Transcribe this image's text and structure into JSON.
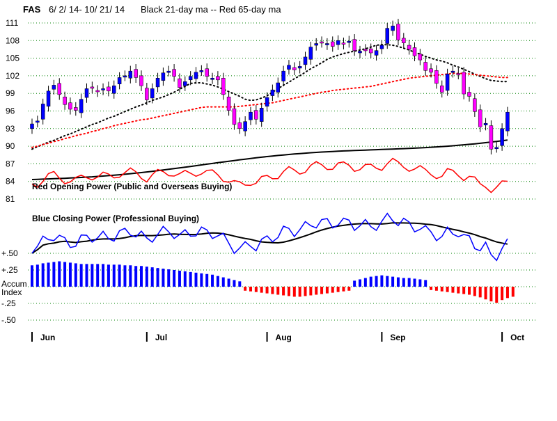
{
  "chart_data": {
    "type": "candlestick",
    "title": {
      "ticker": "FAS",
      "dates": "6/ 2/ 14- 10/ 21/ 14",
      "ma_note": "Black 21-day ma --  Red 65-day ma"
    },
    "y_ticks": [
      "111",
      "108",
      "105",
      "102",
      "99",
      "96",
      "93",
      "90",
      "87",
      "84",
      "81"
    ],
    "y_tick_values": [
      111,
      108,
      105,
      102,
      99,
      96,
      93,
      90,
      87,
      84,
      81
    ],
    "ylim": [
      79.5,
      112.5
    ],
    "accum_ticks": [
      "+.50",
      "+.25",
      "Accum",
      "Index",
      "-.25",
      "-.50"
    ],
    "months": [
      "Jun",
      "Jul",
      "Aug",
      "Sep",
      "Oct"
    ],
    "month_start_index": [
      0,
      21,
      43,
      64,
      86
    ],
    "grid": true,
    "colors": {
      "up": "#0000ff",
      "down": "#ff00ff",
      "ma21": "#000000",
      "ma65": "#ff0000",
      "opening_power": "#ff0000",
      "closing_power": "#0000ff",
      "accum_pos": "#0000ff",
      "accum_neg": "#ff0000",
      "grid": "#008000"
    },
    "series_labels": {
      "opening_power": "Red Opening Power (Public and Overseas Buying)",
      "closing_power": "Blue Closing Power (Professional Buying)"
    },
    "closes": [
      93.8,
      94.3,
      97.2,
      99.4,
      100.4,
      98.8,
      97.1,
      96.3,
      96.1,
      98.0,
      99.8,
      99.9,
      99.3,
      99.8,
      99.4,
      100.3,
      101.7,
      102.0,
      102.8,
      101.7,
      100.3,
      97.9,
      99.8,
      101.6,
      102.5,
      102.8,
      101.9,
      100.0,
      101.0,
      101.9,
      102.6,
      102.9,
      101.9,
      101.6,
      101.3,
      98.8,
      96.1,
      93.7,
      93.0,
      94.2,
      95.8,
      94.6,
      96.5,
      98.3,
      99.6,
      100.8,
      102.8,
      103.8,
      103.0,
      103.6,
      105.2,
      106.9,
      107.5,
      107.7,
      107.5,
      107.0,
      108.0,
      107.4,
      107.9,
      106.3,
      106.2,
      106.3,
      105.9,
      106.3,
      107.2,
      110.1,
      110.5,
      108.1,
      107.6,
      106.5,
      105.4,
      104.7,
      102.9,
      102.6,
      100.7,
      99.2,
      102.3,
      102.8,
      102.3,
      98.9,
      98.5,
      95.9,
      93.3,
      93.9,
      89.5,
      89.8,
      93.0,
      95.8
    ],
    "ma21": [
      89.5,
      89.9,
      90.3,
      90.7,
      91.0,
      91.4,
      91.8,
      92.1,
      92.5,
      92.9,
      93.3,
      93.7,
      94.0,
      94.4,
      94.8,
      95.1,
      95.5,
      95.9,
      96.3,
      96.7,
      97.0,
      97.4,
      97.8,
      98.1,
      98.4,
      98.8,
      99.2,
      99.7,
      100.2,
      100.7,
      100.8,
      100.8,
      100.6,
      100.4,
      100.1,
      99.7,
      99.3,
      98.9,
      98.5,
      98.0,
      97.8,
      97.9,
      98.2,
      98.6,
      99.2,
      99.8,
      100.4,
      100.9,
      101.5,
      102.0,
      102.6,
      103.2,
      103.7,
      104.2,
      104.8,
      105.2,
      105.5,
      105.8,
      106.0,
      106.2,
      106.4,
      106.6,
      106.9,
      107.2,
      107.3,
      107.3,
      107.2,
      107.0,
      106.7,
      106.4,
      106.0,
      105.7,
      105.3,
      105.0,
      104.7,
      104.5,
      104.2,
      103.8,
      103.5,
      103.1,
      102.7,
      102.3,
      101.9,
      101.5,
      101.2,
      101.1,
      101.0,
      101.0
    ],
    "ma65": [
      89.8,
      90.0,
      90.3,
      90.5,
      90.8,
      91.0,
      91.3,
      91.5,
      91.8,
      92.0,
      92.2,
      92.5,
      92.7,
      93.0,
      93.2,
      93.5,
      93.7,
      93.9,
      94.1,
      94.3,
      94.5,
      94.6,
      94.8,
      95.0,
      95.2,
      95.4,
      95.6,
      95.8,
      96.0,
      96.2,
      96.4,
      96.6,
      96.7,
      96.7,
      96.7,
      96.7,
      96.7,
      96.7,
      96.8,
      96.9,
      97.0,
      97.1,
      97.2,
      97.3,
      97.4,
      97.6,
      97.8,
      98.0,
      98.2,
      98.4,
      98.6,
      98.8,
      99.0,
      99.2,
      99.3,
      99.5,
      99.6,
      99.7,
      99.8,
      99.9,
      100.0,
      100.1,
      100.2,
      100.4,
      100.6,
      100.8,
      101.0,
      101.2,
      101.4,
      101.6,
      101.7,
      101.8,
      101.9,
      102.0,
      102.1,
      102.2,
      102.3,
      102.4,
      102.4,
      102.4,
      102.3,
      102.2,
      102.1,
      102.0,
      101.9,
      101.8,
      101.7,
      101.7
    ],
    "accum_index": [
      0.32,
      0.33,
      0.35,
      0.36,
      0.37,
      0.38,
      0.37,
      0.36,
      0.35,
      0.34,
      0.34,
      0.34,
      0.34,
      0.34,
      0.33,
      0.33,
      0.33,
      0.32,
      0.32,
      0.31,
      0.31,
      0.3,
      0.29,
      0.28,
      0.27,
      0.26,
      0.25,
      0.24,
      0.23,
      0.22,
      0.21,
      0.2,
      0.19,
      0.18,
      0.16,
      0.14,
      0.12,
      0.1,
      0.08,
      -0.06,
      -0.07,
      -0.08,
      -0.09,
      -0.1,
      -0.11,
      -0.12,
      -0.13,
      -0.14,
      -0.15,
      -0.15,
      -0.14,
      -0.13,
      -0.12,
      -0.11,
      -0.1,
      -0.09,
      -0.08,
      -0.07,
      -0.06,
      0.09,
      0.11,
      0.13,
      0.15,
      0.16,
      0.17,
      0.16,
      0.15,
      0.14,
      0.13,
      0.13,
      0.12,
      0.11,
      0.1,
      -0.05,
      -0.06,
      -0.07,
      -0.08,
      -0.09,
      -0.1,
      -0.11,
      -0.12,
      -0.14,
      -0.16,
      -0.19,
      -0.22,
      -0.24,
      -0.2,
      -0.17,
      -0.15
    ]
  }
}
